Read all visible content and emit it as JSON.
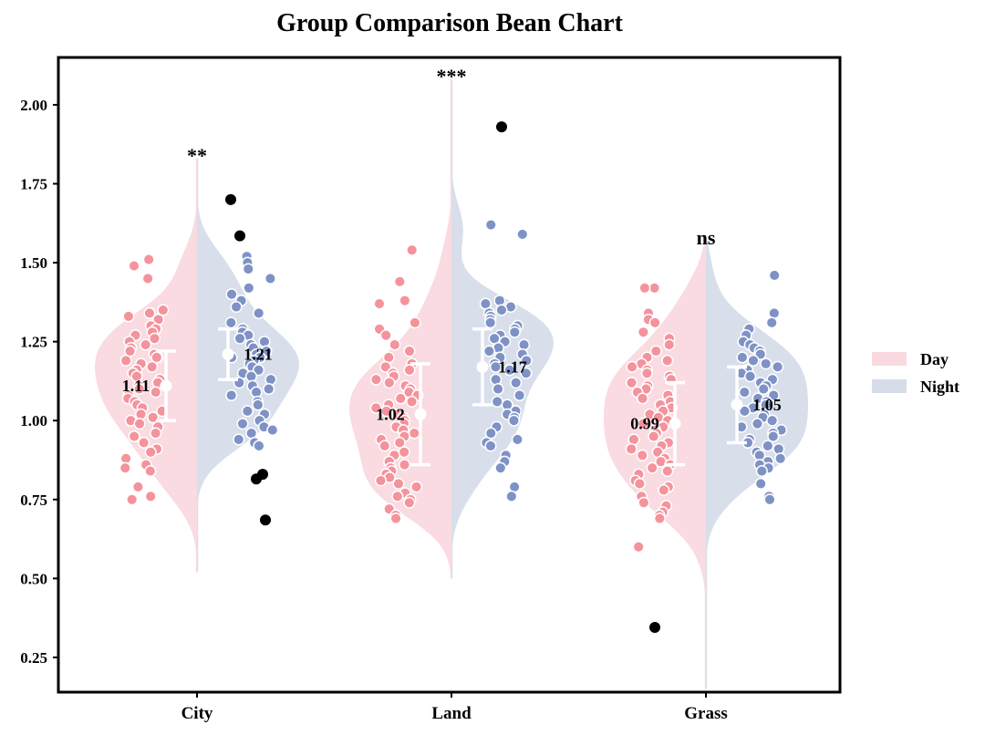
{
  "colors": {
    "day": "#f4939c",
    "day_fill": "#f9d9df",
    "night": "#7f92c6",
    "night_fill": "#d6dde9",
    "outlier": "#000000",
    "axes": "#000000"
  },
  "legend": {
    "placement": "right",
    "entries": [
      "Day",
      "Night"
    ]
  },
  "chart_data": {
    "type": "violin",
    "title": "Group Comparison Bean Chart",
    "xlabel": "",
    "ylabel": "",
    "ylim": [
      0.14,
      2.15
    ],
    "yticks": [
      "0.25",
      "0.50",
      "0.75",
      "1.00",
      "1.25",
      "1.50",
      "1.75",
      "2.00"
    ],
    "yticks_values": [
      0.25,
      0.5,
      0.75,
      1.0,
      1.25,
      1.5,
      1.75,
      2.0
    ],
    "categories": [
      "City",
      "Land",
      "Grass"
    ],
    "series": [
      {
        "name": "Day",
        "means": [
          1.11,
          1.02,
          0.99
        ],
        "mean_labels": [
          "1.11",
          "1.02",
          "0.99"
        ],
        "sd": [
          0.11,
          0.16,
          0.13
        ],
        "kde_min": [
          0.52,
          0.5,
          0.15
        ],
        "kde_max": [
          1.83,
          2.08,
          1.57
        ]
      },
      {
        "name": "Night",
        "means": [
          1.21,
          1.17,
          1.05
        ],
        "mean_labels": [
          "1.21",
          "1.17",
          "1.05"
        ],
        "sd": [
          0.08,
          0.12,
          0.12
        ],
        "kde_min": [
          0.52,
          0.5,
          0.15
        ],
        "kde_max": [
          1.83,
          2.08,
          1.57
        ]
      }
    ],
    "significance": [
      "**",
      "***",
      "ns"
    ],
    "outliers": [
      {
        "group": "City",
        "series": "Night",
        "values": [
          1.7,
          1.585,
          0.83,
          0.815,
          0.685
        ]
      },
      {
        "group": "Land",
        "series": "Night",
        "values": [
          1.93
        ]
      },
      {
        "group": "Grass",
        "series": "Day",
        "values": [
          0.345
        ]
      }
    ],
    "points": {
      "City": {
        "Day": [
          1.51,
          1.49,
          1.45,
          1.35,
          1.34,
          1.34,
          1.33,
          1.32,
          1.3,
          1.29,
          1.28,
          1.27,
          1.26,
          1.25,
          1.24,
          1.23,
          1.22,
          1.21,
          1.2,
          1.2,
          1.19,
          1.18,
          1.17,
          1.16,
          1.15,
          1.14,
          1.13,
          1.12,
          1.11,
          1.1,
          1.09,
          1.08,
          1.07,
          1.06,
          1.05,
          1.04,
          1.03,
          1.02,
          1.01,
          1.0,
          0.99,
          0.98,
          0.96,
          0.95,
          0.93,
          0.91,
          0.9,
          0.88,
          0.86,
          0.85,
          0.84,
          0.79,
          0.76,
          0.75
        ],
        "Night": [
          1.52,
          1.5,
          1.48,
          1.45,
          1.42,
          1.4,
          1.38,
          1.36,
          1.34,
          1.31,
          1.29,
          1.28,
          1.27,
          1.26,
          1.25,
          1.24,
          1.23,
          1.22,
          1.21,
          1.2,
          1.2,
          1.19,
          1.18,
          1.17,
          1.16,
          1.15,
          1.14,
          1.13,
          1.12,
          1.11,
          1.1,
          1.09,
          1.08,
          1.06,
          1.05,
          1.03,
          1.02,
          1.0,
          0.99,
          0.98,
          0.97,
          0.96,
          0.94,
          0.93,
          0.92
        ]
      },
      "Land": {
        "Day": [
          1.54,
          1.44,
          1.38,
          1.37,
          1.31,
          1.29,
          1.27,
          1.24,
          1.22,
          1.2,
          1.18,
          1.17,
          1.16,
          1.15,
          1.14,
          1.13,
          1.12,
          1.11,
          1.1,
          1.09,
          1.08,
          1.07,
          1.06,
          1.05,
          1.04,
          1.03,
          1.02,
          1.01,
          1.0,
          0.99,
          0.98,
          0.97,
          0.96,
          0.95,
          0.94,
          0.93,
          0.92,
          0.9,
          0.89,
          0.87,
          0.86,
          0.85,
          0.84,
          0.83,
          0.82,
          0.81,
          0.8,
          0.79,
          0.77,
          0.76,
          0.75,
          0.74,
          0.72,
          0.7,
          0.69
        ],
        "Night": [
          1.62,
          1.59,
          1.38,
          1.37,
          1.36,
          1.35,
          1.34,
          1.33,
          1.32,
          1.31,
          1.3,
          1.29,
          1.28,
          1.27,
          1.26,
          1.25,
          1.24,
          1.23,
          1.22,
          1.21,
          1.2,
          1.19,
          1.18,
          1.17,
          1.16,
          1.15,
          1.13,
          1.12,
          1.1,
          1.08,
          1.06,
          1.05,
          1.03,
          1.02,
          1.01,
          1.0,
          0.98,
          0.96,
          0.94,
          0.93,
          0.92,
          0.89,
          0.87,
          0.85,
          0.79,
          0.76
        ]
      },
      "Grass": {
        "Day": [
          1.42,
          1.42,
          1.34,
          1.32,
          1.31,
          1.28,
          1.26,
          1.24,
          1.22,
          1.2,
          1.19,
          1.18,
          1.17,
          1.16,
          1.15,
          1.14,
          1.13,
          1.12,
          1.11,
          1.1,
          1.09,
          1.08,
          1.07,
          1.06,
          1.05,
          1.04,
          1.03,
          1.02,
          1.01,
          1.0,
          0.99,
          0.98,
          0.97,
          0.96,
          0.95,
          0.94,
          0.93,
          0.92,
          0.91,
          0.9,
          0.89,
          0.88,
          0.87,
          0.86,
          0.85,
          0.84,
          0.83,
          0.81,
          0.8,
          0.79,
          0.78,
          0.76,
          0.74,
          0.73,
          0.71,
          0.7,
          0.69,
          0.6
        ],
        "Night": [
          1.46,
          1.34,
          1.31,
          1.29,
          1.27,
          1.25,
          1.24,
          1.23,
          1.22,
          1.21,
          1.2,
          1.19,
          1.18,
          1.17,
          1.16,
          1.15,
          1.14,
          1.13,
          1.12,
          1.11,
          1.1,
          1.09,
          1.08,
          1.07,
          1.06,
          1.05,
          1.04,
          1.03,
          1.02,
          1.01,
          1.0,
          0.99,
          0.98,
          0.97,
          0.96,
          0.95,
          0.94,
          0.93,
          0.92,
          0.91,
          0.9,
          0.89,
          0.88,
          0.87,
          0.86,
          0.85,
          0.84,
          0.8,
          0.76,
          0.75
        ]
      }
    }
  }
}
